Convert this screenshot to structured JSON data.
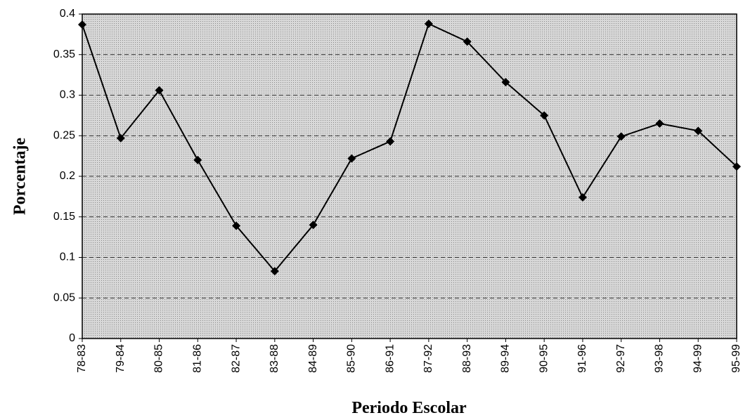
{
  "chart_data": {
    "type": "line",
    "x_label": "Periodo Escolar",
    "y_label": "Porcentaje",
    "categories": [
      "78-83",
      "79-84",
      "80-85",
      "81-86",
      "82-87",
      "83-88",
      "84-89",
      "85-90",
      "86-91",
      "87-92",
      "88-93",
      "89-94",
      "90-95",
      "91-96",
      "92-97",
      "93-98",
      "94-99",
      "95-99"
    ],
    "series": [
      {
        "color": "#000000",
        "values": [
          0.387,
          0.247,
          0.306,
          0.22,
          0.139,
          0.083,
          0.14,
          0.222,
          0.243,
          0.388,
          0.366,
          0.316,
          0.275,
          0.174,
          0.249,
          0.265,
          0.256,
          0.212
        ]
      }
    ],
    "ylim": [
      0,
      0.4
    ],
    "yticks": [
      0,
      0.05,
      0.1,
      0.15,
      0.2,
      0.25,
      0.3,
      0.35,
      0.4
    ],
    "grid": true
  }
}
